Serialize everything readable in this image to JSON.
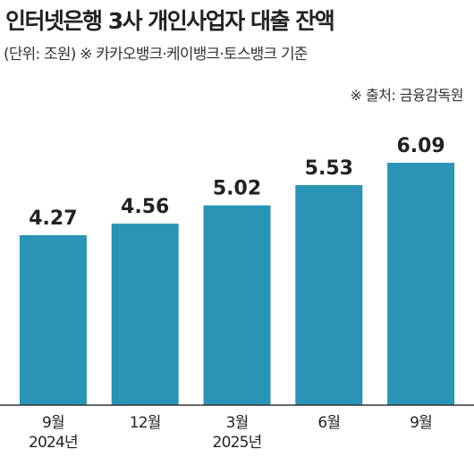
{
  "chart_data": {
    "type": "bar",
    "title": "인터넷은행 3사 개인사업자 대출 잔액",
    "subtitle": "(단위: 조원) ※ 카카오뱅크·케이뱅크·토스뱅크 기준",
    "source": "※ 출처: 금융감독원",
    "categories": [
      "9월\n2024년",
      "12월",
      "3월\n2025년",
      "6월",
      "9월"
    ],
    "values": [
      4.27,
      4.56,
      5.02,
      5.53,
      6.09
    ],
    "color": "#2a94b6"
  }
}
